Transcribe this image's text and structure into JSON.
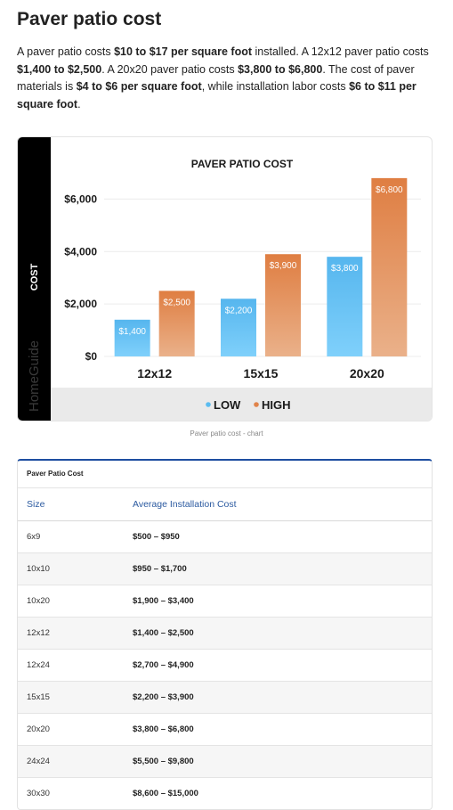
{
  "article": {
    "title": "Paver patio cost",
    "intro": [
      {
        "t": "A paver patio costs ",
        "b": false
      },
      {
        "t": "$10 to $17 per square foot",
        "b": true
      },
      {
        "t": " installed. A 12x12 paver patio costs ",
        "b": false
      },
      {
        "t": "$1,400 to $2,500",
        "b": true
      },
      {
        "t": ". A 20x20 paver patio costs ",
        "b": false
      },
      {
        "t": "$3,800 to $6,800",
        "b": true
      },
      {
        "t": ". The cost of paver materials is ",
        "b": false
      },
      {
        "t": "$4 to $6 per square foot",
        "b": true
      },
      {
        "t": ", while installation labor costs ",
        "b": false
      },
      {
        "t": "$6 to $11 per square foot",
        "b": true
      },
      {
        "t": ".",
        "b": false
      }
    ]
  },
  "chart_data": {
    "type": "bar",
    "title": "PAVER PATIO COST",
    "ylabel": "COST",
    "xlabel": "",
    "brand": "HomeGuide",
    "categories": [
      "12x12",
      "15x15",
      "20x20"
    ],
    "series": [
      {
        "name": "LOW",
        "values": [
          1400,
          2200,
          3800
        ],
        "labels": [
          "$1,400",
          "$2,200",
          "$3,800"
        ],
        "color": "#5bbcf0"
      },
      {
        "name": "HIGH",
        "values": [
          2500,
          3900,
          6800
        ],
        "labels": [
          "$2,500",
          "$3,900",
          "$6,800"
        ],
        "color": "#e0834a"
      }
    ],
    "yticks": [
      0,
      2000,
      4000,
      6000
    ],
    "ytick_labels": [
      "$0",
      "$2,000",
      "$4,000",
      "$6,000"
    ],
    "ylim": [
      0,
      7000
    ],
    "legend_position": "bottom",
    "grid": true
  },
  "chart_caption": "Paver patio cost - chart",
  "table": {
    "title": "Paver Patio Cost",
    "headers": [
      "Size",
      "Average Installation Cost"
    ],
    "rows": [
      [
        "6x9",
        "$500 – $950"
      ],
      [
        "10x10",
        "$950 – $1,700"
      ],
      [
        "10x20",
        "$1,900 – $3,400"
      ],
      [
        "12x12",
        "$1,400 – $2,500"
      ],
      [
        "12x24",
        "$2,700 – $4,900"
      ],
      [
        "15x15",
        "$2,200 – $3,900"
      ],
      [
        "20x20",
        "$3,800 – $6,800"
      ],
      [
        "24x24",
        "$5,500 – $9,800"
      ],
      [
        "30x30",
        "$8,600 – $15,000"
      ]
    ]
  },
  "colors": {
    "low_bar": "#5bbcf0",
    "high_bar": "#e0834a",
    "header_blue": "#2b5aa0",
    "table_top_border": "#1d4ea0"
  }
}
